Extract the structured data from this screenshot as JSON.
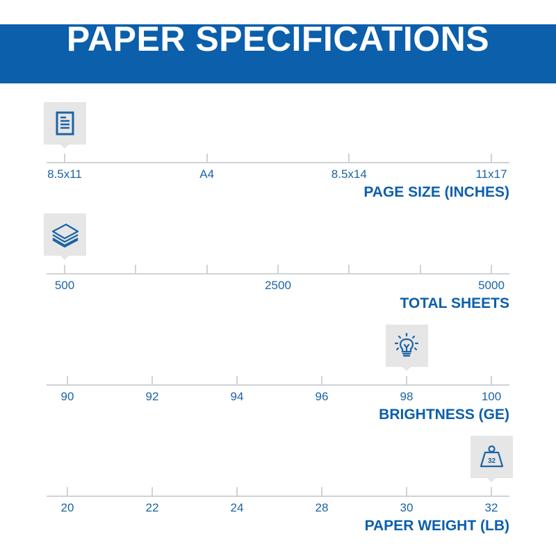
{
  "title": "PAPER SPECIFICATIONS",
  "colors": {
    "brand": "#0b5fab",
    "text": "#1b63a6",
    "axis": "#cfd3d6",
    "icon_bg": "#e6e6e6"
  },
  "scales": [
    {
      "title": "PAGE SIZE (INCHES)",
      "icon": "document-icon",
      "ticks": [
        "8.5x11",
        "A4",
        "8.5x14",
        "11x17"
      ],
      "selected": "8.5x11"
    },
    {
      "title": "TOTAL SHEETS",
      "icon": "paper-stack-icon",
      "ticks": [
        "500",
        "",
        "",
        "2500",
        "",
        "",
        "5000"
      ],
      "selected": "500"
    },
    {
      "title": "BRIGHTNESS (GE)",
      "icon": "lightbulb-icon",
      "ticks": [
        "90",
        "92",
        "94",
        "96",
        "98",
        "100"
      ],
      "selected": "98"
    },
    {
      "title": "PAPER WEIGHT (LB)",
      "icon": "weight-icon",
      "icon_text": "32",
      "ticks": [
        "20",
        "22",
        "24",
        "28",
        "30",
        "32"
      ],
      "selected": "32"
    }
  ]
}
